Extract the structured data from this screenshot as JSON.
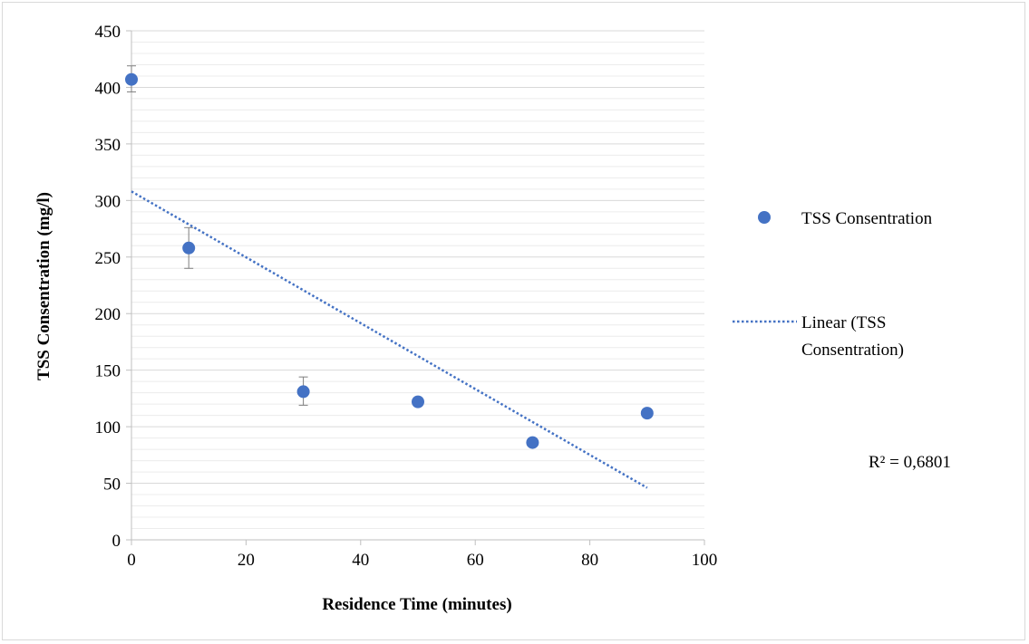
{
  "chart_data": {
    "type": "scatter",
    "title": "",
    "xlabel": "Residence Time (minutes)",
    "ylabel": "TSS Consentration  (mg/l)",
    "xlim": [
      0,
      100
    ],
    "ylim": [
      0,
      450
    ],
    "x_ticks": [
      "0",
      "20",
      "40",
      "60",
      "80",
      "100"
    ],
    "y_ticks": [
      "0",
      "50",
      "100",
      "150",
      "200",
      "250",
      "300",
      "350",
      "400",
      "450"
    ],
    "grid": {
      "major": true,
      "minor": true
    },
    "legend_position": "right",
    "series": [
      {
        "name": "TSS Consentration",
        "x": [
          0,
          10,
          30,
          50,
          70,
          90
        ],
        "y": [
          407,
          258,
          131,
          122,
          86,
          112
        ],
        "error_low": [
          396,
          240,
          119,
          null,
          null,
          null
        ],
        "error_high": [
          419,
          276,
          144,
          null,
          null,
          null
        ],
        "color": "#4472c4"
      }
    ],
    "trendline": {
      "name_line1": "Linear (TSS",
      "name_line2": "Consentration)",
      "x": [
        0,
        90
      ],
      "y": [
        308,
        46
      ],
      "r_squared_label": "R² = 0,6801",
      "color": "#4472c4"
    }
  }
}
